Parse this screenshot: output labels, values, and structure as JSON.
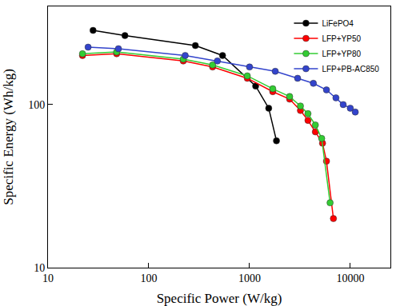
{
  "chart_data": {
    "type": "line",
    "x_label": "Specific Power (W/kg)",
    "y_label": "Specific Energy (Wh/kg)",
    "log": true,
    "grid": false,
    "legend": "top right",
    "marker": "circle",
    "line_style": "solid",
    "xlim": [
      10,
      25000
    ],
    "ylim": [
      10,
      400
    ],
    "xticks": [
      10,
      100,
      1000,
      10000
    ],
    "yticks": [
      10,
      100
    ],
    "series": [
      {
        "name": "LiFePO4",
        "color": "#000000",
        "x": [
          28,
          58,
          290,
          540,
          1150,
          1550,
          1850
        ],
        "values": [
          285,
          265,
          230,
          200,
          130,
          95,
          60
        ]
      },
      {
        "name": "LFP+YP50",
        "color": "#ff0000",
        "x": [
          22,
          48,
          220,
          430,
          950,
          1700,
          2500,
          3200,
          3800,
          4500,
          5300,
          5800,
          6800
        ],
        "values": [
          200,
          205,
          185,
          170,
          145,
          120,
          108,
          92,
          80,
          68,
          58,
          45,
          20
        ]
      },
      {
        "name": "LFP+YP80",
        "color": "#33cc33",
        "x": [
          22,
          48,
          220,
          430,
          950,
          1700,
          2500,
          3200,
          3800,
          4500,
          5200,
          6300
        ],
        "values": [
          205,
          210,
          190,
          175,
          150,
          125,
          112,
          98,
          88,
          75,
          62,
          25
        ]
      },
      {
        "name": "LFP+PB-AC850",
        "color": "#3344cc",
        "x": [
          25,
          50,
          230,
          480,
          1000,
          1800,
          3000,
          4300,
          5800,
          7200,
          8500,
          10000,
          11200
        ],
        "values": [
          225,
          220,
          200,
          185,
          170,
          160,
          145,
          135,
          123,
          110,
          100,
          95,
          90
        ]
      }
    ]
  }
}
